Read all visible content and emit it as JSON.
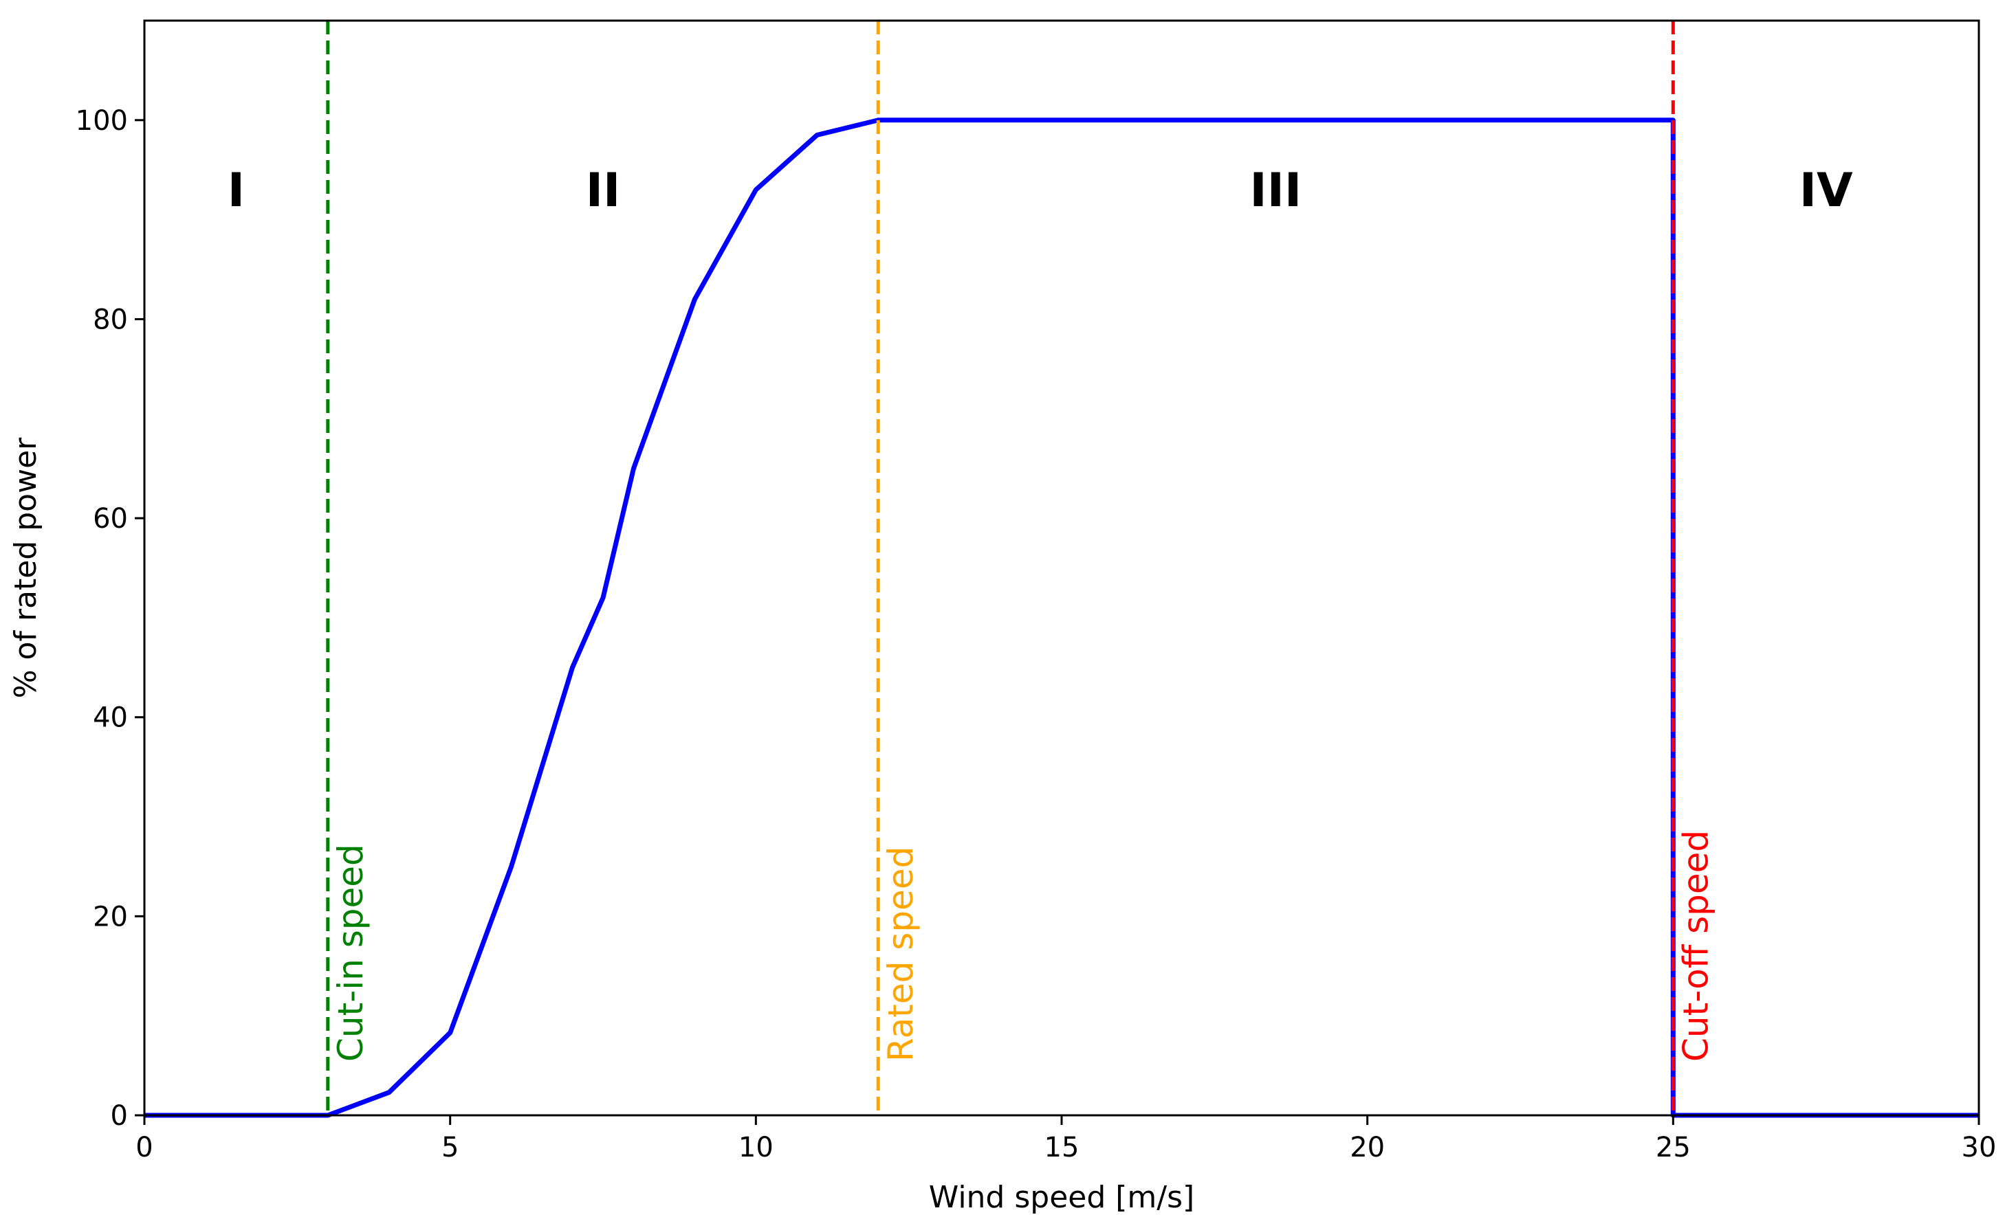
{
  "chart_data": {
    "type": "line",
    "title": "",
    "xlabel": "Wind speed [m/s]",
    "ylabel": "% of rated power",
    "xlim": [
      0,
      30
    ],
    "ylim": [
      0,
      110
    ],
    "xticks": [
      0,
      5,
      10,
      15,
      20,
      25,
      30
    ],
    "yticks": [
      0,
      20,
      40,
      60,
      80,
      100
    ],
    "xtick_labels": [
      "0",
      "5",
      "10",
      "15",
      "20",
      "25",
      "30"
    ],
    "ytick_labels": [
      "0",
      "20",
      "40",
      "60",
      "80",
      "100"
    ],
    "grid": false,
    "legend": "none",
    "series": [
      {
        "color": "#0000ff",
        "x": [
          0,
          3,
          4,
          5,
          6,
          7,
          7.5,
          8,
          9,
          10,
          11,
          12,
          25,
          25,
          30
        ],
        "y": [
          0,
          0,
          2.3,
          8.3,
          25,
          45,
          52,
          65,
          82,
          93,
          98.5,
          100,
          100,
          0,
          0
        ]
      }
    ],
    "vertical_lines": [
      {
        "x": 3,
        "label": "Cut-in speed",
        "color": "#008000"
      },
      {
        "x": 12,
        "label": "Rated speed",
        "color": "#ffa500"
      },
      {
        "x": 25,
        "label": "Cut-off speed",
        "color": "#ff0000"
      }
    ],
    "regions": [
      {
        "label": "I",
        "x": 1.5
      },
      {
        "label": "II",
        "x": 7.5
      },
      {
        "label": "III",
        "x": 18.5
      },
      {
        "label": "IV",
        "x": 27.5
      }
    ],
    "region_label_y": 93
  }
}
